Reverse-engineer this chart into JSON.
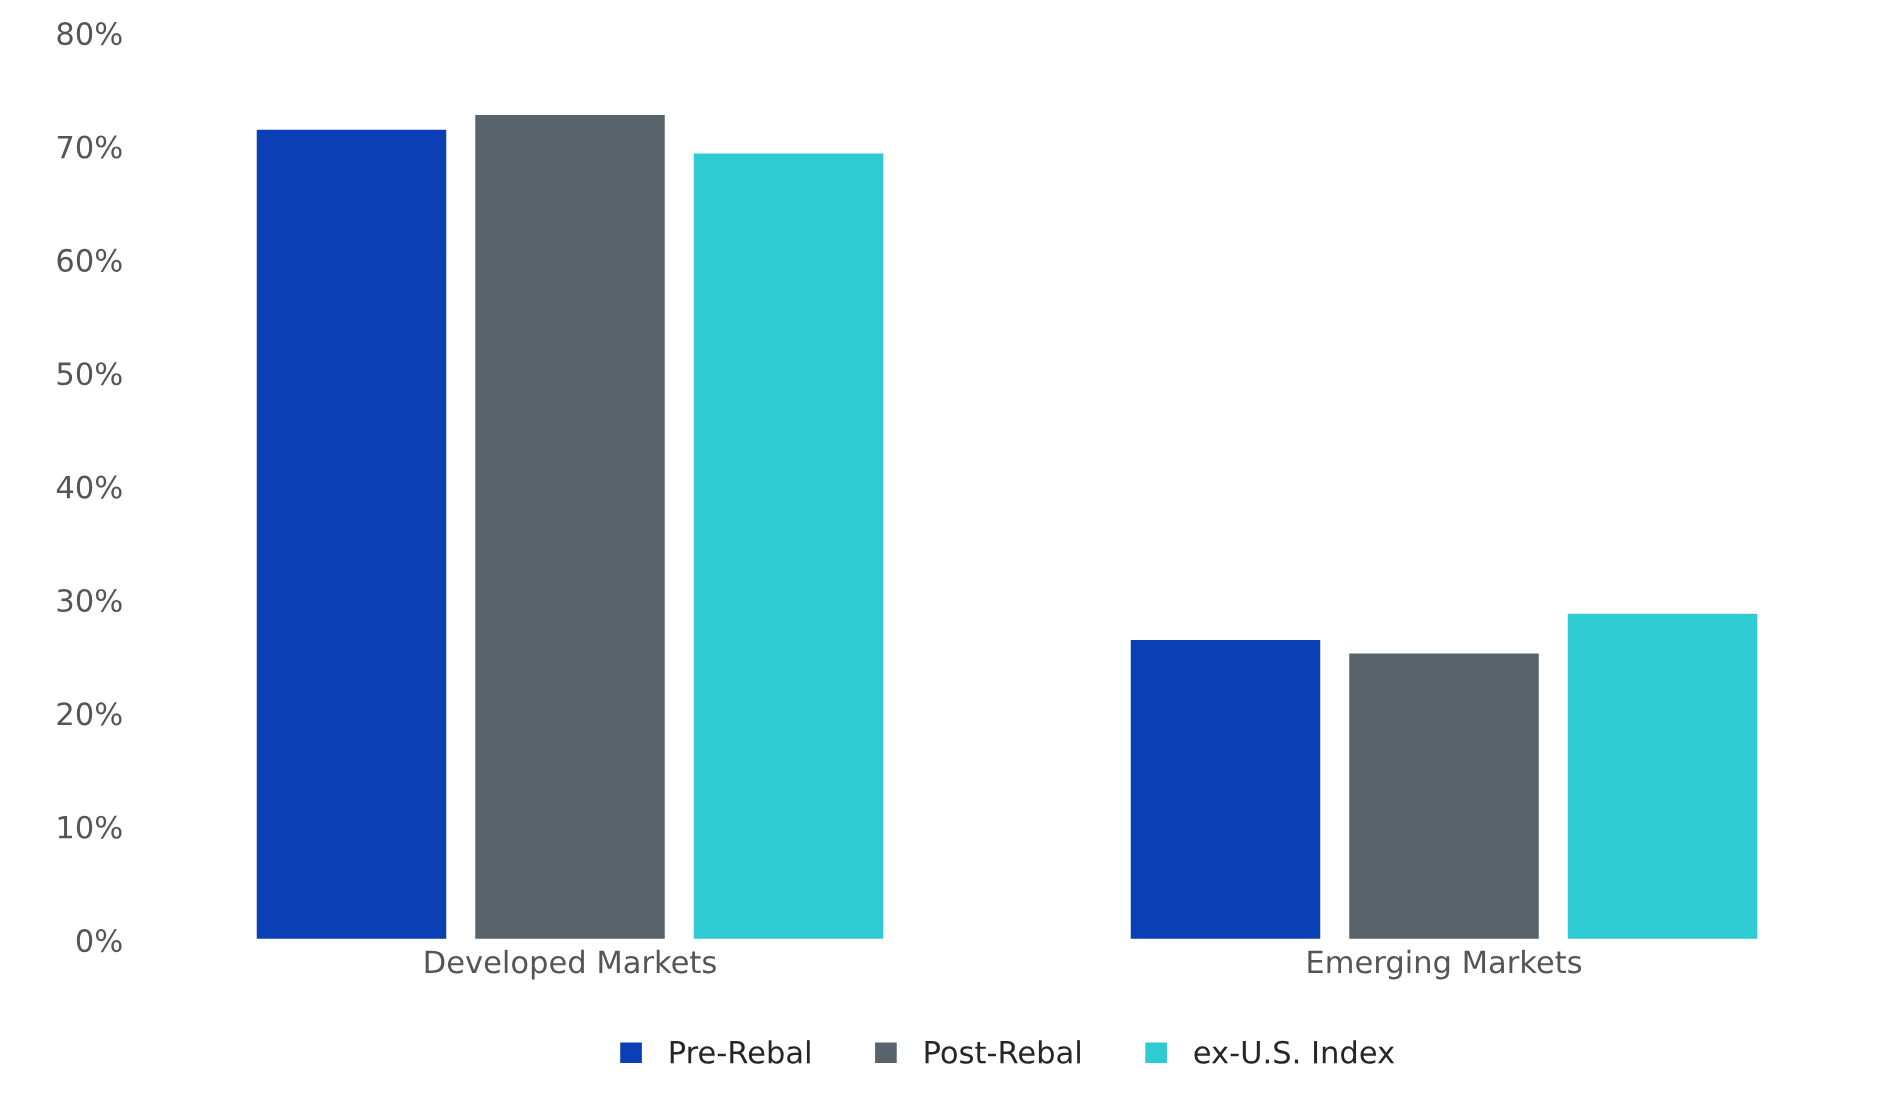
{
  "chart_data": {
    "type": "bar",
    "categories": [
      "Developed Markets",
      "Emerging Markets"
    ],
    "series": [
      {
        "name": "Pre-Rebal",
        "color": "#0a3fb5",
        "values": [
          71.6,
          26.6
        ]
      },
      {
        "name": "Post-Rebal",
        "color": "#58636b",
        "values": [
          72.9,
          25.4
        ]
      },
      {
        "name": "ex-U.S. Index",
        "color": "#2ecbd3",
        "values": [
          69.5,
          28.9
        ]
      }
    ],
    "ylim": [
      0,
      80
    ],
    "yticks": [
      {
        "value": 0,
        "label": "0%"
      },
      {
        "value": 10,
        "label": "10%"
      },
      {
        "value": 20,
        "label": "20%"
      },
      {
        "value": 30,
        "label": "30%"
      },
      {
        "value": 40,
        "label": "40%"
      },
      {
        "value": 50,
        "label": "50%"
      },
      {
        "value": 60,
        "label": "60%"
      },
      {
        "value": 70,
        "label": "70%"
      },
      {
        "value": 80,
        "label": "80%"
      }
    ],
    "grid": false,
    "legend": "bottom"
  }
}
